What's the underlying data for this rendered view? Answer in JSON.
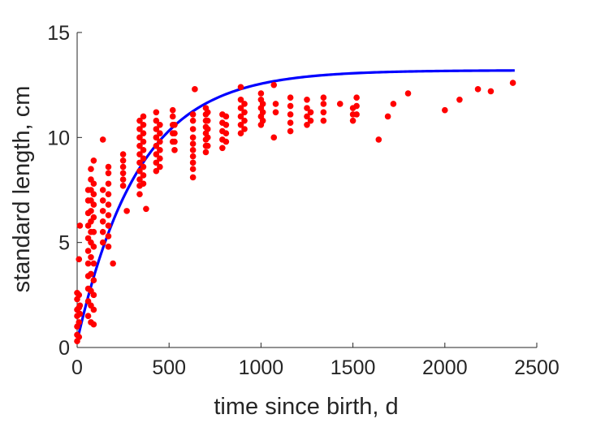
{
  "chart_data": {
    "type": "scatter",
    "title": "",
    "xlabel": "time since birth, d",
    "ylabel": "standard length, cm",
    "xlim": [
      0,
      2500
    ],
    "ylim": [
      0,
      15
    ],
    "x_ticks": [
      0,
      500,
      1000,
      1500,
      2000,
      2500
    ],
    "y_ticks": [
      0,
      5,
      10,
      15
    ],
    "x_tick_labels": [
      "0",
      "500",
      "1000",
      "1500",
      "2000",
      "2500"
    ],
    "y_tick_labels": [
      "0",
      "5",
      "10",
      "15"
    ],
    "grid": false,
    "colors": {
      "scatter": "#ff0000",
      "fit": "#0000ff",
      "axes": "#262626"
    },
    "series": [
      {
        "kind": "scatter",
        "points": [
          [
            0,
            0.3
          ],
          [
            0,
            0.6
          ],
          [
            0,
            1.0
          ],
          [
            0,
            1.5
          ],
          [
            0,
            1.8
          ],
          [
            0,
            2.3
          ],
          [
            0,
            2.6
          ],
          [
            10,
            0.5
          ],
          [
            10,
            1.2
          ],
          [
            10,
            1.9
          ],
          [
            10,
            2.5
          ],
          [
            10,
            4.2
          ],
          [
            15,
            5.8
          ],
          [
            15,
            1.6
          ],
          [
            15,
            2.0
          ],
          [
            60,
            1.5
          ],
          [
            60,
            2.2
          ],
          [
            60,
            2.8
          ],
          [
            60,
            3.4
          ],
          [
            60,
            4.0
          ],
          [
            60,
            4.6
          ],
          [
            60,
            5.2
          ],
          [
            60,
            5.8
          ],
          [
            60,
            6.4
          ],
          [
            60,
            7.0
          ],
          [
            60,
            7.5
          ],
          [
            75,
            1.2
          ],
          [
            75,
            2.0
          ],
          [
            75,
            2.7
          ],
          [
            75,
            3.5
          ],
          [
            75,
            4.3
          ],
          [
            75,
            5.0
          ],
          [
            75,
            5.5
          ],
          [
            75,
            6.0
          ],
          [
            75,
            6.5
          ],
          [
            75,
            7.0
          ],
          [
            75,
            7.5
          ],
          [
            75,
            8.0
          ],
          [
            75,
            8.5
          ],
          [
            90,
            1.1
          ],
          [
            90,
            1.8
          ],
          [
            90,
            2.5
          ],
          [
            90,
            3.2
          ],
          [
            90,
            4.0
          ],
          [
            90,
            4.8
          ],
          [
            90,
            5.5
          ],
          [
            90,
            6.2
          ],
          [
            90,
            6.8
          ],
          [
            90,
            7.3
          ],
          [
            90,
            7.8
          ],
          [
            90,
            8.9
          ],
          [
            140,
            5.0
          ],
          [
            140,
            5.5
          ],
          [
            140,
            6.0
          ],
          [
            140,
            6.5
          ],
          [
            140,
            7.0
          ],
          [
            140,
            7.5
          ],
          [
            140,
            9.9
          ],
          [
            170,
            4.8
          ],
          [
            170,
            5.3
          ],
          [
            170,
            5.8
          ],
          [
            170,
            6.3
          ],
          [
            170,
            6.8
          ],
          [
            170,
            7.3
          ],
          [
            170,
            7.8
          ],
          [
            170,
            8.3
          ],
          [
            170,
            8.6
          ],
          [
            195,
            4.0
          ],
          [
            250,
            7.7
          ],
          [
            250,
            8.0
          ],
          [
            250,
            8.3
          ],
          [
            250,
            8.6
          ],
          [
            250,
            8.9
          ],
          [
            250,
            9.2
          ],
          [
            270,
            6.5
          ],
          [
            340,
            7.3
          ],
          [
            340,
            7.7
          ],
          [
            340,
            8.0
          ],
          [
            340,
            8.4
          ],
          [
            340,
            8.8
          ],
          [
            340,
            9.2
          ],
          [
            340,
            9.6
          ],
          [
            340,
            10.0
          ],
          [
            340,
            10.4
          ],
          [
            340,
            10.8
          ],
          [
            360,
            7.8
          ],
          [
            360,
            8.2
          ],
          [
            360,
            8.6
          ],
          [
            360,
            9.0
          ],
          [
            360,
            9.4
          ],
          [
            360,
            9.8
          ],
          [
            360,
            10.2
          ],
          [
            360,
            10.6
          ],
          [
            360,
            11.0
          ],
          [
            375,
            6.6
          ],
          [
            430,
            8.4
          ],
          [
            430,
            8.8
          ],
          [
            430,
            9.2
          ],
          [
            430,
            9.6
          ],
          [
            430,
            10.0
          ],
          [
            430,
            10.4
          ],
          [
            430,
            10.8
          ],
          [
            430,
            11.2
          ],
          [
            450,
            8.6
          ],
          [
            450,
            9.0
          ],
          [
            450,
            9.4
          ],
          [
            450,
            9.8
          ],
          [
            450,
            10.2
          ],
          [
            450,
            10.6
          ],
          [
            520,
            9.8
          ],
          [
            520,
            10.2
          ],
          [
            520,
            10.6
          ],
          [
            520,
            11.0
          ],
          [
            520,
            11.3
          ],
          [
            530,
            9.4
          ],
          [
            530,
            9.8
          ],
          [
            530,
            10.2
          ],
          [
            530,
            10.6
          ],
          [
            630,
            8.1
          ],
          [
            630,
            8.5
          ],
          [
            630,
            8.8
          ],
          [
            630,
            9.1
          ],
          [
            630,
            9.4
          ],
          [
            630,
            9.7
          ],
          [
            630,
            10.0
          ],
          [
            630,
            10.4
          ],
          [
            630,
            10.8
          ],
          [
            630,
            11.1
          ],
          [
            640,
            12.3
          ],
          [
            700,
            9.3
          ],
          [
            700,
            9.6
          ],
          [
            700,
            9.9
          ],
          [
            700,
            10.2
          ],
          [
            700,
            10.5
          ],
          [
            700,
            10.8
          ],
          [
            700,
            11.1
          ],
          [
            700,
            11.4
          ],
          [
            710,
            9.6
          ],
          [
            710,
            10.0
          ],
          [
            710,
            10.4
          ],
          [
            710,
            10.8
          ],
          [
            710,
            11.2
          ],
          [
            790,
            9.5
          ],
          [
            790,
            9.9
          ],
          [
            790,
            10.3
          ],
          [
            790,
            10.7
          ],
          [
            790,
            11.1
          ],
          [
            810,
            9.8
          ],
          [
            810,
            10.2
          ],
          [
            810,
            10.6
          ],
          [
            810,
            11.0
          ],
          [
            890,
            10.2
          ],
          [
            890,
            10.6
          ],
          [
            890,
            11.0
          ],
          [
            890,
            11.4
          ],
          [
            890,
            11.8
          ],
          [
            890,
            12.4
          ],
          [
            910,
            10.4
          ],
          [
            910,
            10.8
          ],
          [
            910,
            11.2
          ],
          [
            910,
            11.6
          ],
          [
            1000,
            10.6
          ],
          [
            1000,
            11.0
          ],
          [
            1000,
            11.4
          ],
          [
            1000,
            11.8
          ],
          [
            1000,
            12.1
          ],
          [
            1010,
            10.8
          ],
          [
            1010,
            11.2
          ],
          [
            1010,
            11.6
          ],
          [
            1070,
            10.0
          ],
          [
            1070,
            12.5
          ],
          [
            1080,
            11.2
          ],
          [
            1080,
            11.6
          ],
          [
            1160,
            10.3
          ],
          [
            1160,
            10.7
          ],
          [
            1160,
            11.1
          ],
          [
            1160,
            11.5
          ],
          [
            1160,
            11.9
          ],
          [
            1250,
            10.6
          ],
          [
            1250,
            11.0
          ],
          [
            1250,
            11.4
          ],
          [
            1250,
            11.8
          ],
          [
            1270,
            10.8
          ],
          [
            1270,
            11.2
          ],
          [
            1340,
            10.8
          ],
          [
            1340,
            11.2
          ],
          [
            1340,
            11.6
          ],
          [
            1340,
            11.9
          ],
          [
            1430,
            11.6
          ],
          [
            1500,
            10.8
          ],
          [
            1500,
            11.1
          ],
          [
            1500,
            11.4
          ],
          [
            1520,
            11.1
          ],
          [
            1520,
            11.5
          ],
          [
            1520,
            11.9
          ],
          [
            1640,
            9.9
          ],
          [
            1690,
            11.0
          ],
          [
            1720,
            11.6
          ],
          [
            1800,
            12.1
          ],
          [
            2000,
            11.3
          ],
          [
            2080,
            11.8
          ],
          [
            2180,
            12.3
          ],
          [
            2250,
            12.2
          ],
          [
            2370,
            12.6
          ]
        ]
      },
      {
        "kind": "line",
        "fit": {
          "L_inf": 13.2,
          "L0": 0.3,
          "k": 0.003,
          "x_start": 0,
          "x_end": 2380
        }
      }
    ]
  }
}
